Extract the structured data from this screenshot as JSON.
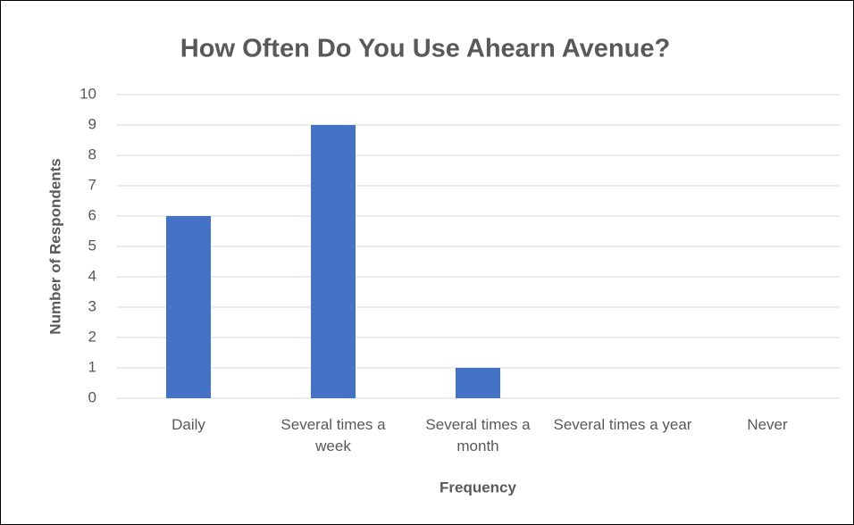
{
  "chart_data": {
    "type": "bar",
    "title": "How Often Do You Use Ahearn Avenue?",
    "x_label": "Frequency",
    "y_label": "Number of Respondents",
    "categories": [
      "Daily",
      "Several times a week",
      "Several times a month",
      "Several times a year",
      "Never"
    ],
    "values": [
      6,
      9,
      1,
      0,
      0
    ],
    "color": "#4472c4",
    "ylim": [
      0,
      10
    ],
    "yticks": [
      0,
      1,
      2,
      3,
      4,
      5,
      6,
      7,
      8,
      9,
      10
    ],
    "grid": true
  }
}
